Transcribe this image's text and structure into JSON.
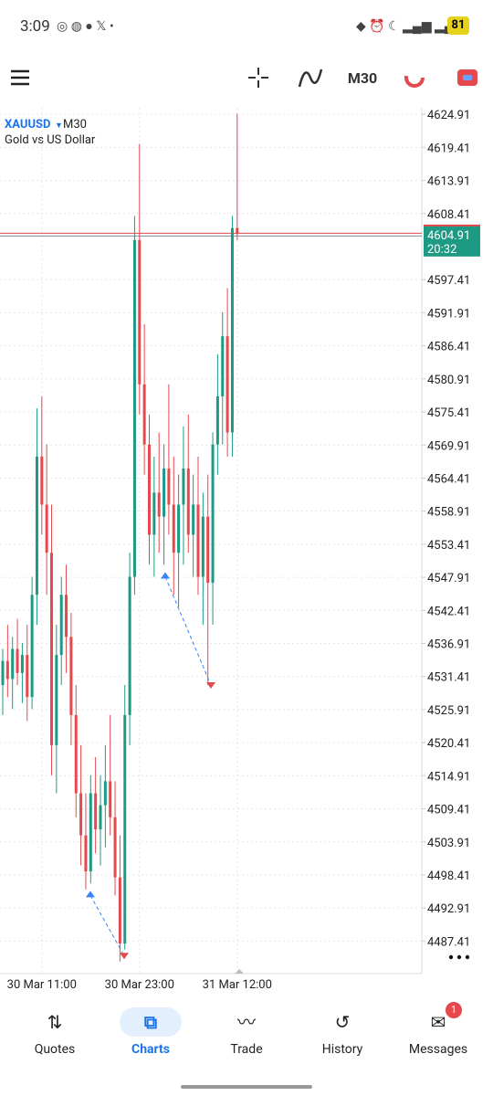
{
  "status_bar": {
    "time": "3:09",
    "battery": "81"
  },
  "toolbar": {
    "timeframe": "M30"
  },
  "chart_data": {
    "type": "candlestick",
    "symbol": "XAUUSD",
    "timeframe": "M30",
    "description": "Gold vs US Dollar",
    "categories": [
      null,
      null,
      null,
      null,
      null,
      null,
      null,
      null,
      "30 Mar 11:00",
      null,
      null,
      null,
      null,
      null,
      null,
      null,
      null,
      null,
      null,
      null,
      null,
      null,
      null,
      null,
      null,
      null,
      null,
      null,
      "30 Mar 23:00",
      null,
      null,
      null,
      null,
      null,
      null,
      null,
      null,
      null,
      null,
      null,
      null,
      null,
      null,
      null,
      null,
      null,
      null,
      null,
      "31 Mar 12:00"
    ],
    "open": [
      4530,
      4534,
      4531,
      4536,
      4532,
      4535,
      4528,
      4545,
      4568,
      4560,
      4552,
      4520,
      4535,
      4545,
      4538,
      4525,
      4512,
      4505,
      4499,
      4512,
      4506,
      4510,
      4514,
      4508,
      4498,
      4487,
      4525,
      4548,
      4604,
      4580,
      4570,
      4555,
      4562,
      4558,
      4566,
      4560,
      4552,
      4560,
      4566,
      4555,
      4560,
      4548,
      4558,
      4547,
      4570,
      4578,
      4588,
      4572,
      4606
    ],
    "high": [
      4536,
      4540,
      4538,
      4541,
      4537,
      4540,
      4548,
      4576,
      4578,
      4570,
      4560,
      4540,
      4548,
      4550,
      4542,
      4530,
      4520,
      4512,
      4515,
      4518,
      4515,
      4520,
      4525,
      4514,
      4505,
      4530,
      4552,
      4608,
      4620,
      4590,
      4575,
      4568,
      4572,
      4570,
      4580,
      4568,
      4565,
      4573,
      4575,
      4565,
      4568,
      4562,
      4565,
      4572,
      4585,
      4592,
      4596,
      4608,
      4625
    ],
    "low": [
      4525,
      4528,
      4526,
      4530,
      4527,
      4524,
      4526,
      4540,
      4555,
      4545,
      4515,
      4512,
      4530,
      4532,
      4520,
      4508,
      4500,
      4496,
      4497,
      4502,
      4500,
      4503,
      4505,
      4495,
      4484,
      4486,
      4520,
      4545,
      4575,
      4565,
      4550,
      4548,
      4552,
      4550,
      4555,
      4545,
      4543,
      4550,
      4552,
      4548,
      4545,
      4540,
      4530,
      4540,
      4565,
      4570,
      4568,
      4568,
      4604
    ],
    "close": [
      4534,
      4531,
      4536,
      4532,
      4535,
      4528,
      4545,
      4568,
      4560,
      4552,
      4520,
      4535,
      4545,
      4538,
      4525,
      4512,
      4505,
      4499,
      4512,
      4506,
      4510,
      4514,
      4508,
      4498,
      4487,
      4525,
      4548,
      4604,
      4580,
      4570,
      4555,
      4562,
      4558,
      4566,
      4560,
      4552,
      4560,
      4566,
      4555,
      4560,
      4548,
      4558,
      4547,
      4570,
      4578,
      4588,
      4572,
      4606,
      4605
    ],
    "up_color": "#1e9a84",
    "down_color": "#e5484d",
    "ylim": [
      4482,
      4626
    ],
    "yticks": [
      4624.91,
      4619.41,
      4613.91,
      4608.41,
      4597.41,
      4591.91,
      4586.41,
      4580.91,
      4575.41,
      4569.91,
      4564.41,
      4558.91,
      4553.41,
      4547.91,
      4542.41,
      4536.91,
      4531.41,
      4525.91,
      4520.41,
      4514.91,
      4509.41,
      4503.91,
      4498.41,
      4492.91,
      4487.41
    ],
    "grid": true,
    "current_price": 4604.91,
    "countdown": "20:32",
    "trades": [
      {
        "open": 4495,
        "close": 4485
      },
      {
        "open": 4548,
        "close": 4530
      }
    ]
  },
  "nav": {
    "items": [
      "Quotes",
      "Charts",
      "Trade",
      "History",
      "Messages"
    ],
    "active": 1,
    "badge": "1"
  }
}
